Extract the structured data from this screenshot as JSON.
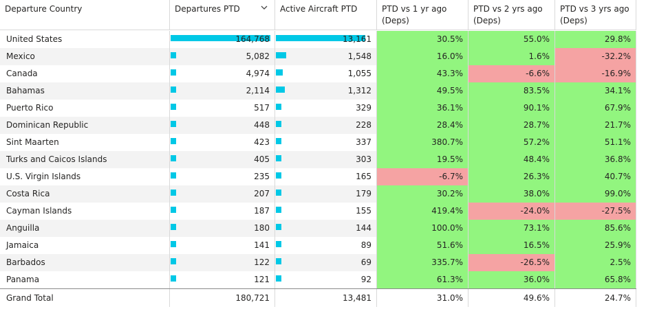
{
  "columns": [
    {
      "label": "Departure Country"
    },
    {
      "label": "Departures PTD",
      "sort_icon": "chevron-down-icon"
    },
    {
      "label": "Active Aircraft PTD"
    },
    {
      "label": "PTD vs 1 yr ago (Deps)"
    },
    {
      "label": "PTD vs 2 yrs ago (Deps)"
    },
    {
      "label": "PTD vs 3 yrs ago (Deps)"
    }
  ],
  "colors": {
    "positive": "#92f57f",
    "negative": "#f5a3a3",
    "bar": "#00c8e6"
  },
  "rows": [
    {
      "country": "United States",
      "departures": "164,768",
      "aircraft": "13,161",
      "vs1": "30.5%",
      "vs2": "55.0%",
      "vs3": "29.8%"
    },
    {
      "country": "Mexico",
      "departures": "5,082",
      "aircraft": "1,548",
      "vs1": "16.0%",
      "vs2": "1.6%",
      "vs3": "-32.2%"
    },
    {
      "country": "Canada",
      "departures": "4,974",
      "aircraft": "1,055",
      "vs1": "43.3%",
      "vs2": "-6.6%",
      "vs3": "-16.9%"
    },
    {
      "country": "Bahamas",
      "departures": "2,114",
      "aircraft": "1,312",
      "vs1": "49.5%",
      "vs2": "83.5%",
      "vs3": "34.1%"
    },
    {
      "country": "Puerto Rico",
      "departures": "517",
      "aircraft": "329",
      "vs1": "36.1%",
      "vs2": "90.1%",
      "vs3": "67.9%"
    },
    {
      "country": "Dominican Republic",
      "departures": "448",
      "aircraft": "228",
      "vs1": "28.4%",
      "vs2": "28.7%",
      "vs3": "21.7%"
    },
    {
      "country": "Sint Maarten",
      "departures": "423",
      "aircraft": "337",
      "vs1": "380.7%",
      "vs2": "57.2%",
      "vs3": "51.1%"
    },
    {
      "country": "Turks and Caicos Islands",
      "departures": "405",
      "aircraft": "303",
      "vs1": "19.5%",
      "vs2": "48.4%",
      "vs3": "36.8%"
    },
    {
      "country": "U.S. Virgin Islands",
      "departures": "235",
      "aircraft": "165",
      "vs1": "-6.7%",
      "vs2": "26.3%",
      "vs3": "40.7%"
    },
    {
      "country": "Costa Rica",
      "departures": "207",
      "aircraft": "179",
      "vs1": "30.2%",
      "vs2": "38.0%",
      "vs3": "99.0%"
    },
    {
      "country": "Cayman Islands",
      "departures": "187",
      "aircraft": "155",
      "vs1": "419.4%",
      "vs2": "-24.0%",
      "vs3": "-27.5%"
    },
    {
      "country": "Anguilla",
      "departures": "180",
      "aircraft": "144",
      "vs1": "100.0%",
      "vs2": "73.1%",
      "vs3": "85.6%"
    },
    {
      "country": "Jamaica",
      "departures": "141",
      "aircraft": "89",
      "vs1": "51.6%",
      "vs2": "16.5%",
      "vs3": "25.9%"
    },
    {
      "country": "Barbados",
      "departures": "122",
      "aircraft": "69",
      "vs1": "335.7%",
      "vs2": "-26.5%",
      "vs3": "2.5%"
    },
    {
      "country": "Panama",
      "departures": "121",
      "aircraft": "92",
      "vs1": "61.3%",
      "vs2": "36.0%",
      "vs3": "65.8%"
    }
  ],
  "total": {
    "label": "Grand Total",
    "departures": "180,721",
    "aircraft": "13,481",
    "vs1": "31.0%",
    "vs2": "49.6%",
    "vs3": "24.7%"
  }
}
